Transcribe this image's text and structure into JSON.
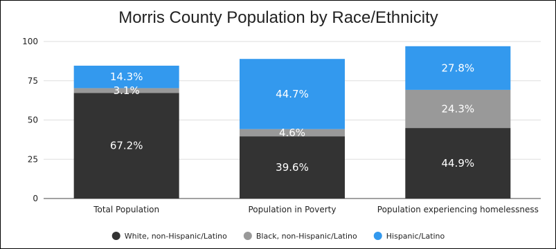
{
  "chart_data": {
    "type": "bar",
    "stacked": true,
    "title": "Morris County Population by Race/Ethnicity",
    "xlabel": "",
    "ylabel": "",
    "ylim": [
      0,
      100
    ],
    "yticks": [
      0,
      25,
      50,
      75,
      100
    ],
    "grid": true,
    "legend_position": "bottom",
    "categories": [
      "Total Population",
      "Population in Poverty",
      "Population experiencing homelessness"
    ],
    "series": [
      {
        "name": "White, non-Hispanic/Latino",
        "color": "#333333",
        "values": [
          67.2,
          39.6,
          44.9
        ],
        "labels": [
          "67.2%",
          "39.6%",
          "44.9%"
        ]
      },
      {
        "name": "Black, non-Hispanic/Latino",
        "color": "#999999",
        "values": [
          3.1,
          4.6,
          24.3
        ],
        "labels": [
          "3.1%",
          "4.6%",
          "24.3%"
        ]
      },
      {
        "name": "Hispanic/Latino",
        "color": "#3399EE",
        "values": [
          14.3,
          44.7,
          27.8
        ],
        "labels": [
          "14.3%",
          "44.7%",
          "27.8%"
        ]
      }
    ]
  }
}
